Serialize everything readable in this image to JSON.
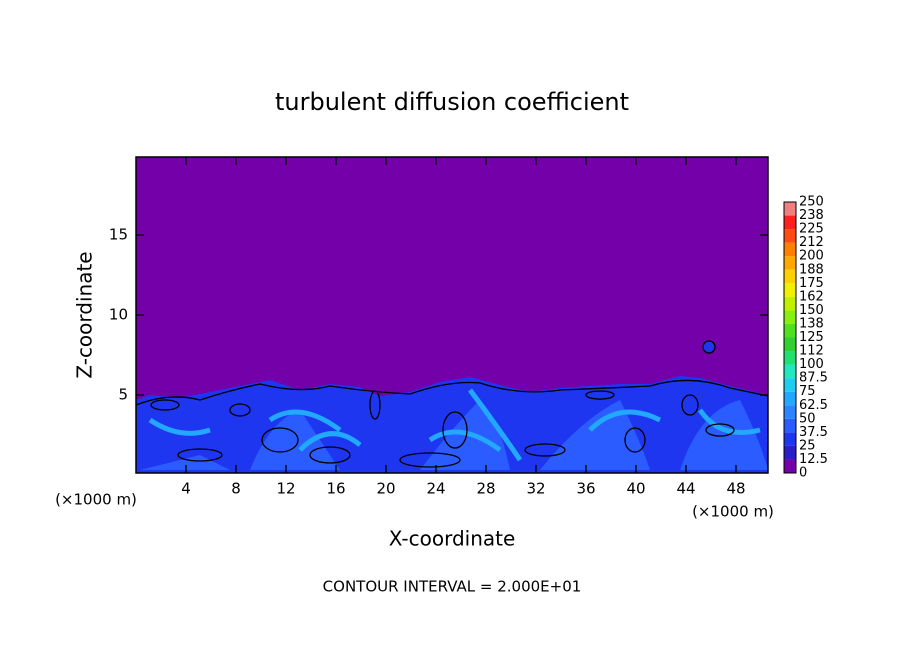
{
  "chart_data": {
    "type": "contour",
    "title": "turbulent diffusion coefficient",
    "x_label": "X-coordinate",
    "y_label": "Z-coordinate",
    "x_unit": "(×1000 m)",
    "note": "CONTOUR INTERVAL = 2.000E+01",
    "xlim": [
      0,
      50.56
    ],
    "xticks": [
      4,
      8,
      12,
      16,
      20,
      24,
      28,
      32,
      36,
      40,
      44,
      48
    ],
    "ylim": [
      0.125,
      19.875
    ],
    "yticks": [
      5,
      10,
      15
    ],
    "colorbar": {
      "levels": [
        0,
        12.5,
        25,
        37.5,
        50,
        62.5,
        75,
        87.5,
        100,
        112,
        125,
        138,
        150,
        162,
        175,
        188,
        200,
        212,
        225,
        238,
        250
      ],
      "colors": [
        "#7400aa",
        "#2a1ec8",
        "#1e36f0",
        "#2a5cff",
        "#2a84ff",
        "#22a8ff",
        "#20ccf0",
        "#20e8c0",
        "#20e070",
        "#30d030",
        "#50e020",
        "#88f010",
        "#c0f000",
        "#f0f000",
        "#ffd000",
        "#ffa800",
        "#ff8000",
        "#ff4a10",
        "#ff2020",
        "#f08080"
      ]
    }
  }
}
